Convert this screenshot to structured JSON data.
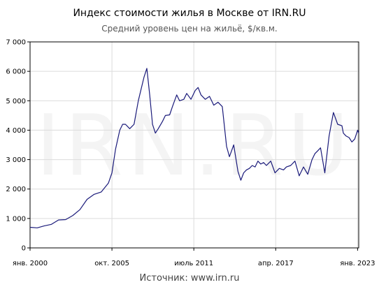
{
  "chart_data": {
    "type": "line",
    "title": "Индекс стоимости жилья в Москве от IRN.RU",
    "subtitle": "Средний уровень цен на жильё, $/кв.м.",
    "source": "Источник: www.irn.ru",
    "watermark": "IRN.RU",
    "xlabel": "",
    "ylabel": "",
    "ylim": [
      0,
      7000
    ],
    "xlim": [
      2000.0,
      2023.08
    ],
    "grid": true,
    "legend": "none",
    "line_color": "#1a1a7a",
    "y_ticks": [
      "0",
      "1 000",
      "2 000",
      "3 000",
      "4 000",
      "5 000",
      "6 000",
      "7 000"
    ],
    "y_tick_values": [
      0,
      1000,
      2000,
      3000,
      4000,
      5000,
      6000,
      7000
    ],
    "x_ticks": [
      "янв. 2000",
      "окт. 2005",
      "июль 2011",
      "апр. 2017",
      "янв. 2023"
    ],
    "x_tick_values": [
      2000.0,
      2005.75,
      2011.5,
      2017.25,
      2023.0
    ],
    "series": [
      {
        "x": [
          2000.0,
          2000.5,
          2001.0,
          2001.5,
          2002.0,
          2002.5,
          2003.0,
          2003.5,
          2004.0,
          2004.5,
          2005.0,
          2005.5,
          2005.75,
          2006.0,
          2006.3,
          2006.5,
          2006.7,
          2007.0,
          2007.3,
          2007.6,
          2008.0,
          2008.2,
          2008.4,
          2008.6,
          2008.8,
          2009.0,
          2009.3,
          2009.5,
          2009.8,
          2010.0,
          2010.3,
          2010.5,
          2010.8,
          2011.0,
          2011.3,
          2011.6,
          2011.8,
          2012.0,
          2012.3,
          2012.6,
          2012.9,
          2013.2,
          2013.5,
          2013.8,
          2014.0,
          2014.3,
          2014.6,
          2014.8,
          2015.0,
          2015.2,
          2015.4,
          2015.6,
          2015.8,
          2016.0,
          2016.2,
          2016.4,
          2016.6,
          2016.9,
          2017.2,
          2017.5,
          2017.8,
          2018.0,
          2018.3,
          2018.6,
          2018.9,
          2019.2,
          2019.5,
          2019.8,
          2020.0,
          2020.2,
          2020.4,
          2020.7,
          2021.0,
          2021.3,
          2021.6,
          2021.9,
          2022.0,
          2022.1,
          2022.2,
          2022.4,
          2022.6,
          2022.8,
          2023.0,
          2023.08
        ],
        "values": [
          700,
          680,
          750,
          800,
          950,
          960,
          1100,
          1300,
          1650,
          1820,
          1900,
          2200,
          2550,
          3350,
          4000,
          4200,
          4200,
          4050,
          4200,
          5000,
          5800,
          6100,
          5200,
          4200,
          3900,
          4050,
          4300,
          4500,
          4520,
          4800,
          5200,
          5000,
          5050,
          5250,
          5050,
          5350,
          5450,
          5200,
          5050,
          5150,
          4850,
          4950,
          4800,
          3450,
          3100,
          3500,
          2600,
          2300,
          2550,
          2650,
          2700,
          2800,
          2750,
          2950,
          2850,
          2900,
          2800,
          2950,
          2550,
          2700,
          2650,
          2750,
          2800,
          2950,
          2450,
          2750,
          2500,
          3000,
          3200,
          3300,
          3400,
          2550,
          3800,
          4600,
          4200,
          4150,
          3900,
          3850,
          3800,
          3750,
          3600,
          3700,
          4000,
          3900
        ]
      }
    ]
  }
}
